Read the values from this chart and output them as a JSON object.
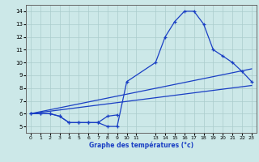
{
  "xlabel": "Graphe des températures (°c)",
  "background_color": "#cce8e8",
  "grid_color": "#aacccc",
  "line_color": "#1a3fc4",
  "ylim": [
    4.5,
    14.5
  ],
  "xlim": [
    -0.5,
    23.5
  ],
  "yticks": [
    5,
    6,
    7,
    8,
    9,
    10,
    11,
    12,
    13,
    14
  ],
  "xticks": [
    0,
    1,
    2,
    3,
    4,
    5,
    6,
    7,
    8,
    9,
    10,
    11,
    13,
    14,
    15,
    16,
    17,
    18,
    19,
    20,
    21,
    22,
    23
  ],
  "main_x": [
    0,
    1,
    2,
    3,
    4,
    5,
    6,
    7,
    8,
    9,
    10,
    13,
    14,
    15,
    16,
    17,
    18,
    19,
    20,
    21,
    22,
    23
  ],
  "main_y": [
    6.0,
    6.0,
    6.0,
    5.8,
    5.3,
    5.3,
    5.3,
    5.3,
    5.0,
    5.0,
    8.5,
    10.0,
    12.0,
    13.2,
    14.0,
    14.0,
    13.0,
    11.0,
    10.5,
    10.0,
    9.3,
    8.5
  ],
  "low_x": [
    0,
    1,
    2,
    3,
    4,
    5,
    6,
    7,
    8,
    9
  ],
  "low_y": [
    6.0,
    6.0,
    6.0,
    5.8,
    5.3,
    5.3,
    5.3,
    5.3,
    5.8,
    5.9
  ],
  "trend1_x": [
    0,
    23
  ],
  "trend1_y": [
    6.0,
    8.2
  ],
  "trend2_x": [
    0,
    23
  ],
  "trend2_y": [
    6.0,
    9.5
  ]
}
